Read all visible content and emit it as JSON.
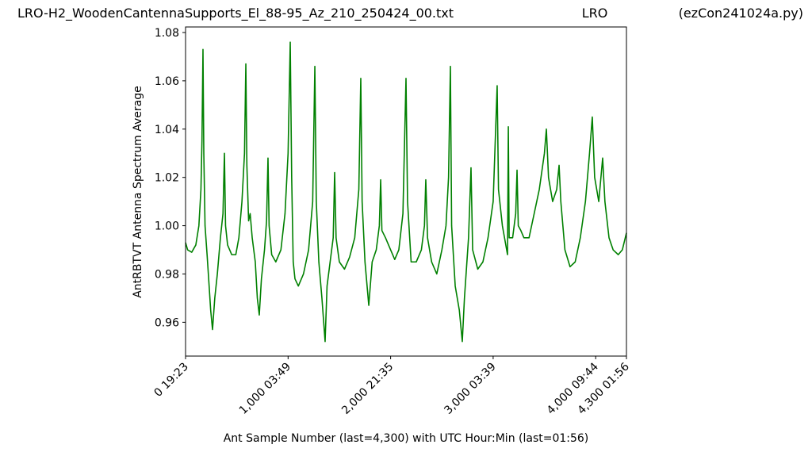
{
  "chart_data": {
    "type": "line",
    "title": "LRO-H2_WoodenCantennaSupports_El_88-95_Az_210_250424_00.txt",
    "title_middle": "LRO",
    "title_right": "(ezCon241024a.py)",
    "xlabel": "Ant Sample Number (last=4,300) with UTC Hour:Min (last=01:56)",
    "ylabel": "AntRBTVT Antenna Spectrum Average",
    "xlim": [
      0,
      4300
    ],
    "ylim": [
      0.946,
      1.0823
    ],
    "xticks": [
      {
        "value": 0,
        "label": "0  19:23"
      },
      {
        "value": 1000,
        "label": "1,000  03:49"
      },
      {
        "value": 2000,
        "label": "2,000  21:35"
      },
      {
        "value": 3000,
        "label": "3,000  03:39"
      },
      {
        "value": 4000,
        "label": "4,000  09:44"
      },
      {
        "value": 4300,
        "label": "4,300  01:56"
      }
    ],
    "yticks": [
      0.96,
      0.98,
      {
        "value": 1,
        "label": "1.00"
      },
      1.02,
      1.04,
      1.06,
      1.08
    ],
    "grid": false,
    "series": [
      {
        "color": "#008000",
        "x": [
          0,
          20,
          60,
          100,
          130,
          150,
          160,
          170,
          178,
          190,
          210,
          230,
          245,
          263,
          285,
          310,
          340,
          365,
          379,
          390,
          410,
          450,
          490,
          520,
          550,
          575,
          588,
          598,
          615,
          630,
          650,
          680,
          700,
          719,
          740,
          770,
          790,
          804,
          815,
          840,
          880,
          930,
          970,
          1000,
          1021,
          1035,
          1050,
          1067,
          1100,
          1150,
          1200,
          1240,
          1261,
          1275,
          1300,
          1330,
          1361,
          1380,
          1410,
          1440,
          1454,
          1468,
          1500,
          1550,
          1600,
          1650,
          1690,
          1709,
          1722,
          1750,
          1787,
          1820,
          1860,
          1890,
          1903,
          1915,
          1950,
          2000,
          2040,
          2080,
          2120,
          2150,
          2165,
          2200,
          2250,
          2300,
          2330,
          2343,
          2360,
          2400,
          2450,
          2500,
          2540,
          2565,
          2583,
          2595,
          2630,
          2670,
          2699,
          2720,
          2760,
          2784,
          2800,
          2850,
          2900,
          2950,
          3000,
          3039,
          3052,
          3090,
          3140,
          3148,
          3156,
          3190,
          3220,
          3233,
          3245,
          3270,
          3300,
          3350,
          3400,
          3450,
          3500,
          3519,
          3540,
          3580,
          3620,
          3643,
          3660,
          3700,
          3750,
          3800,
          3850,
          3900,
          3940,
          3967,
          3990,
          4030,
          4068,
          4090,
          4130,
          4170,
          4220,
          4260,
          4300
        ],
        "values": [
          0.993,
          0.99,
          0.989,
          0.992,
          1.0,
          1.015,
          1.035,
          1.073,
          1.03,
          1.0,
          0.988,
          0.975,
          0.965,
          0.957,
          0.97,
          0.98,
          0.995,
          1.005,
          1.03,
          1.0,
          0.992,
          0.988,
          0.988,
          0.995,
          1.01,
          1.03,
          1.067,
          1.025,
          1.002,
          1.005,
          0.995,
          0.985,
          0.97,
          0.963,
          0.978,
          0.99,
          1.002,
          1.028,
          1.0,
          0.988,
          0.985,
          0.99,
          1.005,
          1.03,
          1.076,
          1.02,
          0.985,
          0.978,
          0.975,
          0.98,
          0.99,
          1.01,
          1.066,
          1.01,
          0.985,
          0.97,
          0.952,
          0.975,
          0.985,
          0.995,
          1.022,
          0.995,
          0.985,
          0.982,
          0.987,
          0.995,
          1.015,
          1.061,
          1.01,
          0.985,
          0.967,
          0.985,
          0.99,
          1.0,
          1.019,
          0.998,
          0.995,
          0.99,
          0.986,
          0.99,
          1.005,
          1.061,
          1.01,
          0.985,
          0.985,
          0.99,
          1.0,
          1.019,
          0.995,
          0.985,
          0.98,
          0.99,
          1.0,
          1.02,
          1.066,
          1.0,
          0.975,
          0.965,
          0.952,
          0.97,
          0.995,
          1.024,
          0.99,
          0.982,
          0.985,
          0.995,
          1.01,
          1.058,
          1.015,
          1.0,
          0.988,
          1.041,
          0.995,
          0.995,
          1.005,
          1.023,
          1.0,
          0.998,
          0.995,
          0.995,
          1.005,
          1.015,
          1.03,
          1.04,
          1.02,
          1.01,
          1.015,
          1.025,
          1.01,
          0.99,
          0.983,
          0.985,
          0.995,
          1.01,
          1.03,
          1.045,
          1.02,
          1.01,
          1.028,
          1.01,
          0.995,
          0.99,
          0.988,
          0.99,
          0.997
        ]
      }
    ]
  }
}
